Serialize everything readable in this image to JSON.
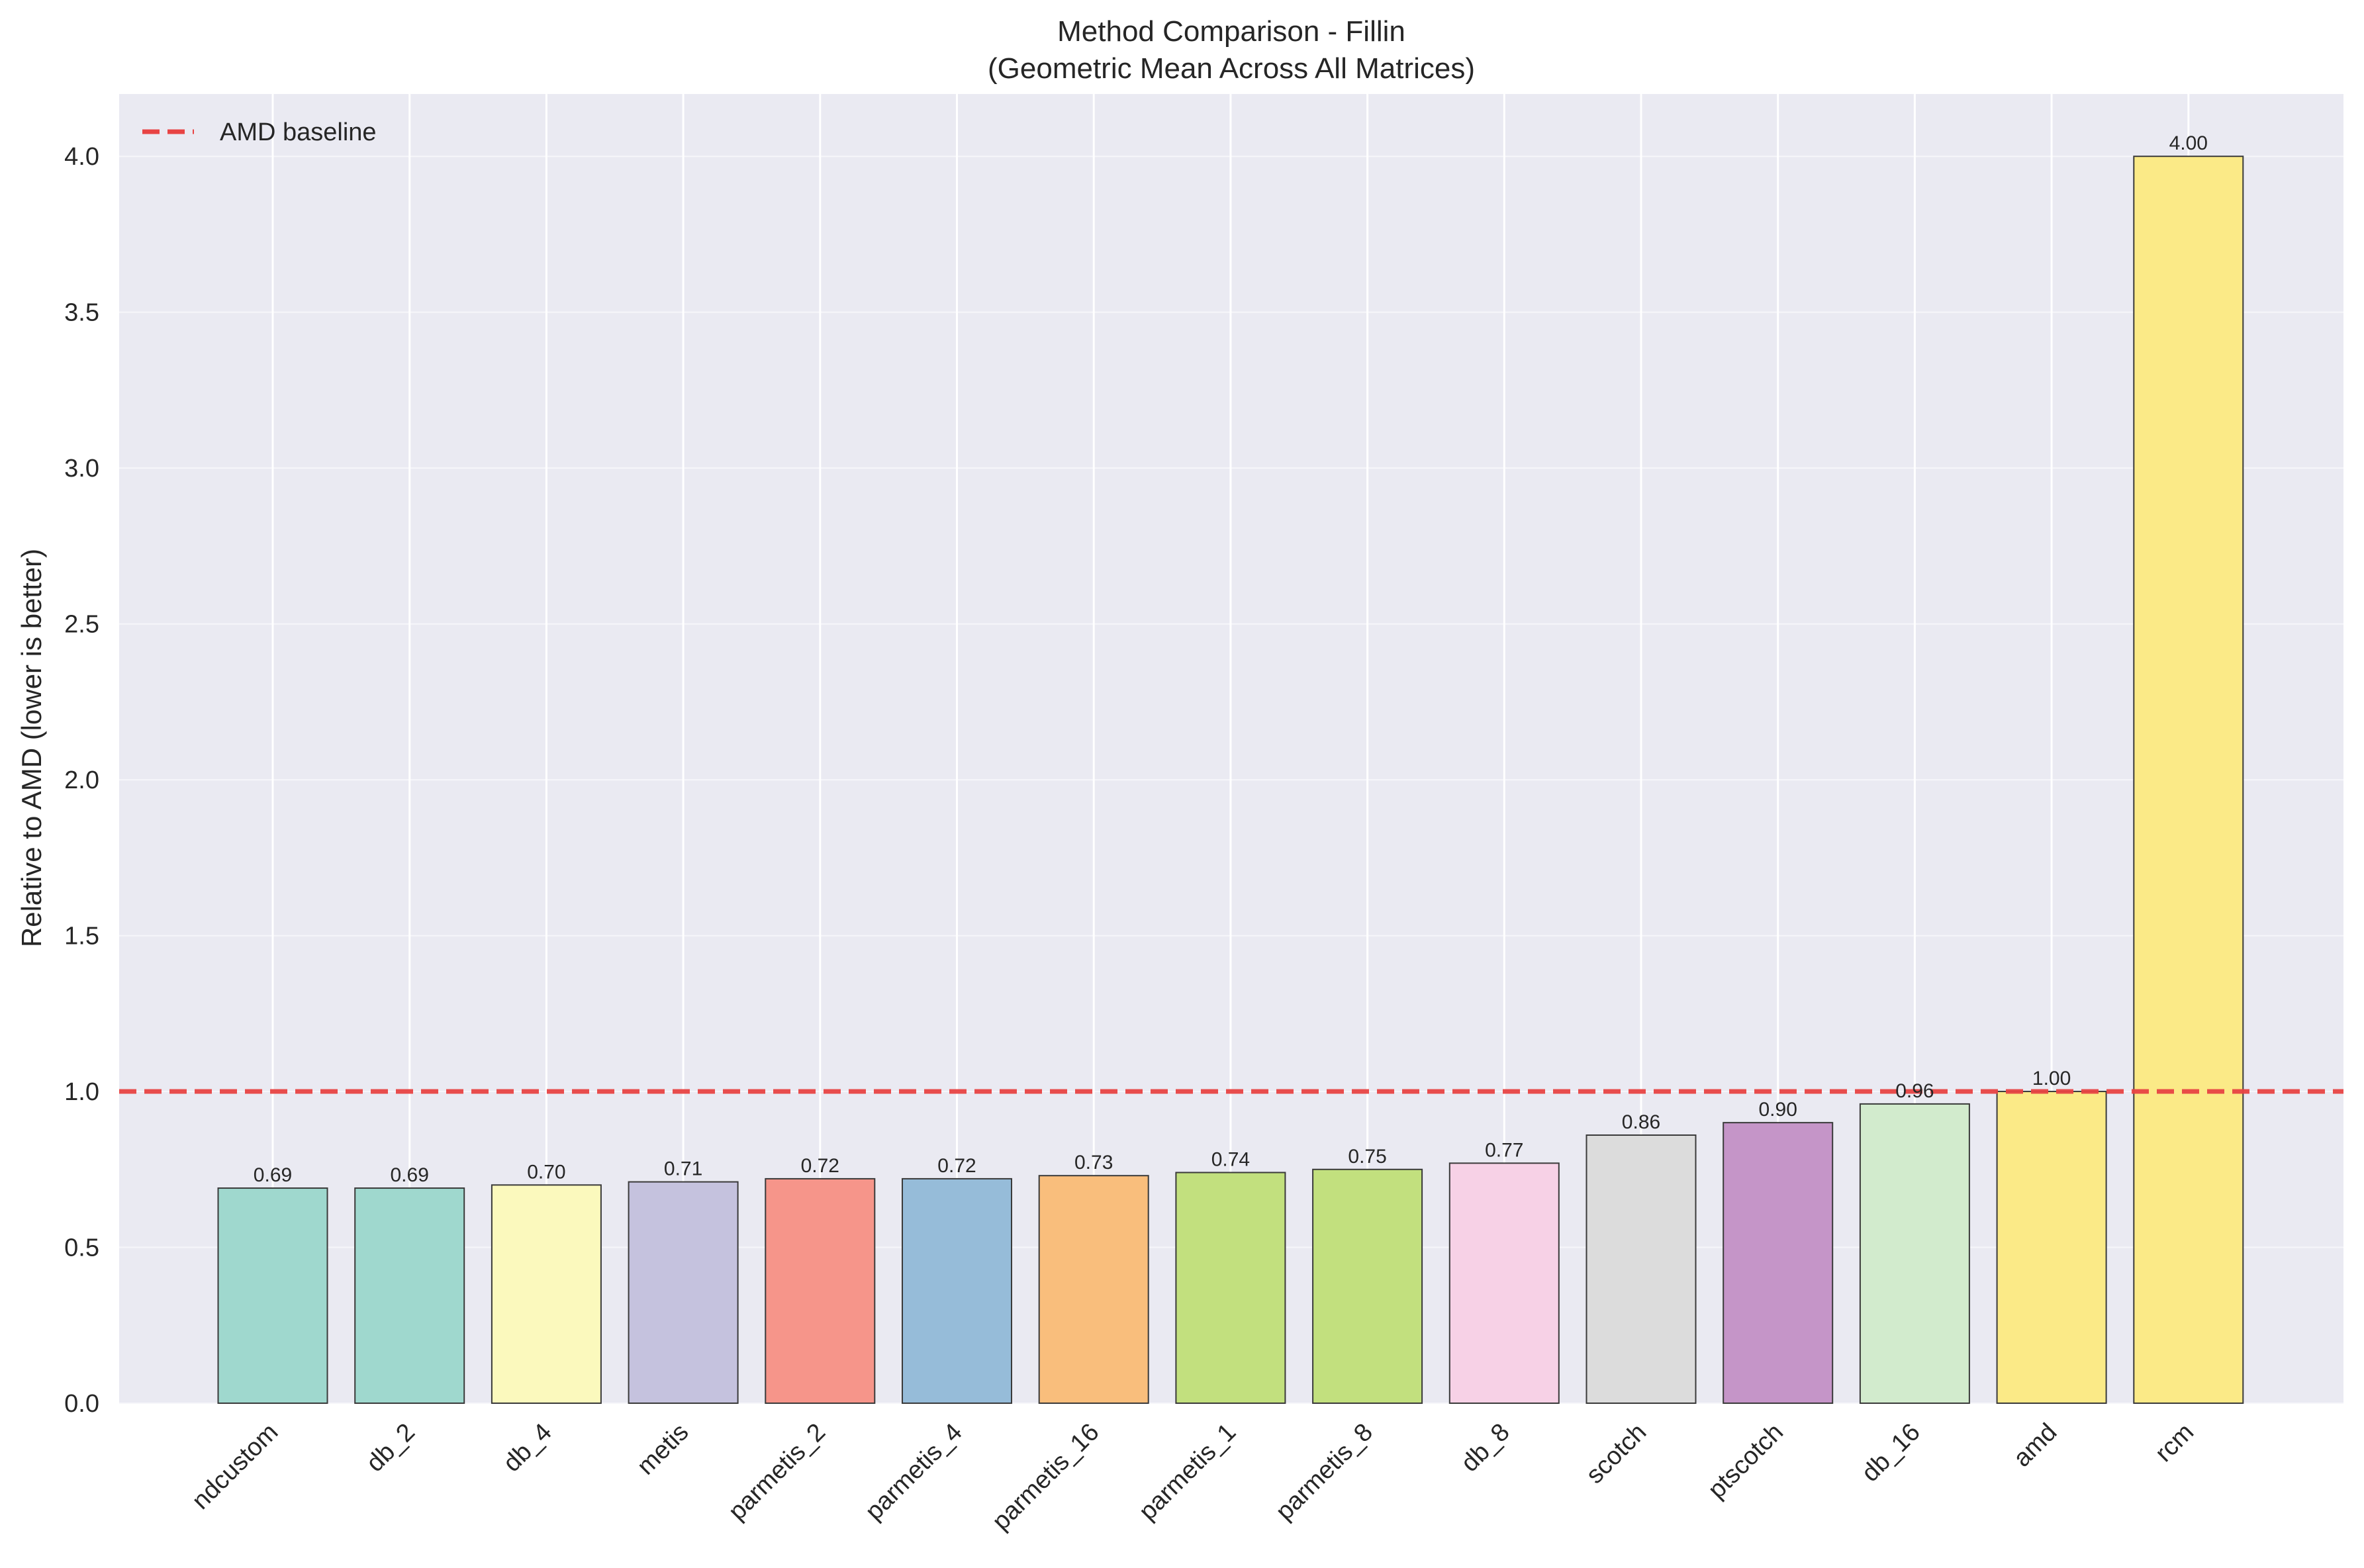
{
  "chart_data": {
    "type": "bar",
    "title": "Method Comparison - Fillin",
    "subtitle": "(Geometric Mean Across All Matrices)",
    "xlabel": "",
    "ylabel": "Relative to AMD (lower is better)",
    "ylim": [
      0,
      4.2
    ],
    "yticks": [
      "0.0",
      "0.5",
      "1.0",
      "1.5",
      "2.0",
      "2.5",
      "3.0",
      "3.5",
      "4.0"
    ],
    "grid": true,
    "legend_position": "top-left",
    "categories": [
      "ndcustom",
      "db_2",
      "db_4",
      "metis",
      "parmetis_2",
      "parmetis_4",
      "parmetis_16",
      "parmetis_1",
      "parmetis_8",
      "db_8",
      "scotch",
      "ptscotch",
      "db_16",
      "amd",
      "rcm"
    ],
    "values": [
      0.69,
      0.69,
      0.7,
      0.71,
      0.72,
      0.72,
      0.73,
      0.74,
      0.75,
      0.77,
      0.86,
      0.9,
      0.96,
      1.0,
      4.0
    ],
    "value_labels": [
      "0.69",
      "0.69",
      "0.70",
      "0.71",
      "0.72",
      "0.72",
      "0.73",
      "0.74",
      "0.75",
      "0.77",
      "0.86",
      "0.90",
      "0.96",
      "1.00",
      "4.00"
    ],
    "colors": [
      "#9fd8ce",
      "#9fd8ce",
      "#fbf9bd",
      "#c5c2de",
      "#f6958a",
      "#96bcd9",
      "#f9be7c",
      "#c2e07e",
      "#c2e07e",
      "#f7d1e6",
      "#dcdcdc",
      "#c595c8",
      "#d2ebcd",
      "#fbea87",
      "#fbea87"
    ],
    "baseline": {
      "value": 1.0,
      "label": "AMD baseline",
      "color": "#e84444"
    }
  }
}
